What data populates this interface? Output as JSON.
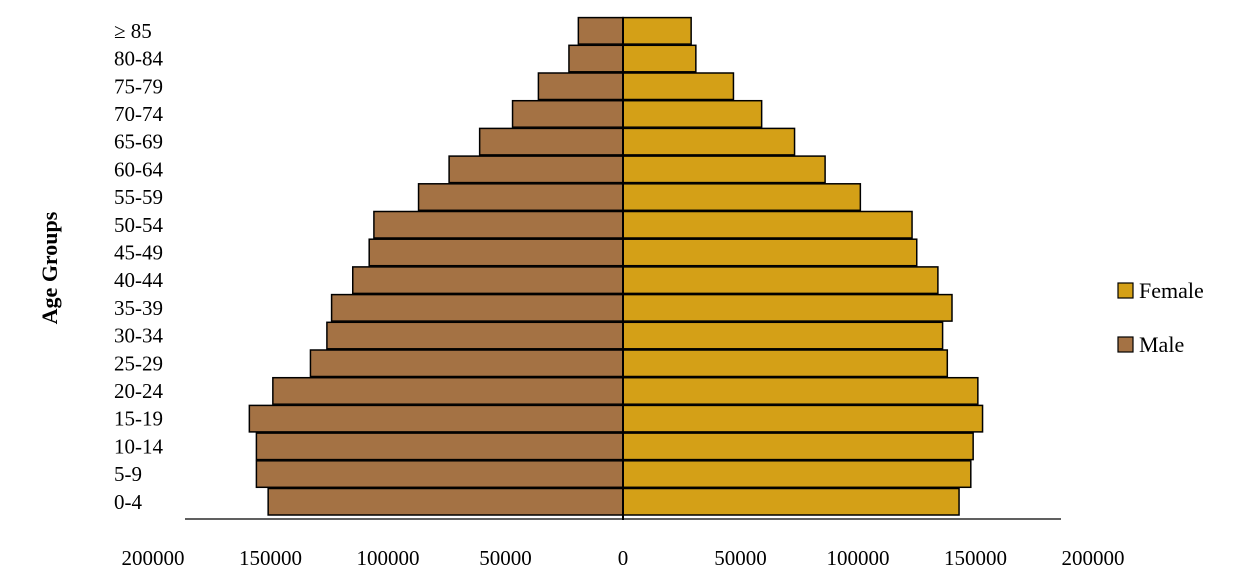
{
  "chart_data": {
    "type": "bar",
    "orientation": "horizontal",
    "subtype": "population-pyramid",
    "ylabel": "Age Groups",
    "xlabel": "",
    "xlim": [
      -200000,
      200000
    ],
    "x_ticks": [
      -200000,
      -150000,
      -100000,
      -50000,
      0,
      50000,
      100000,
      150000,
      200000
    ],
    "x_tick_labels": [
      "200000",
      "150000",
      "100000",
      "50000",
      "0",
      "50000",
      "100000",
      "150000",
      "200000"
    ],
    "categories": [
      "0-4",
      "5-9",
      "10-14",
      "15-19",
      "20-24",
      "25-29",
      "30-34",
      "35-39",
      "40-44",
      "45-49",
      "50-54",
      "55-59",
      "60-64",
      "65-69",
      "70-74",
      "75-79",
      "80-84",
      "≥ 85"
    ],
    "series": [
      {
        "name": "Male",
        "side": "left",
        "color": "#A47244",
        "values": [
          151000,
          156000,
          156000,
          159000,
          149000,
          133000,
          126000,
          124000,
          115000,
          108000,
          106000,
          87000,
          74000,
          61000,
          47000,
          36000,
          23000,
          19000
        ]
      },
      {
        "name": "Female",
        "side": "right",
        "color": "#D4A017",
        "values": [
          143000,
          148000,
          149000,
          153000,
          151000,
          138000,
          136000,
          140000,
          134000,
          125000,
          123000,
          101000,
          86000,
          73000,
          59000,
          47000,
          31000,
          29000
        ]
      }
    ],
    "legend": {
      "placement": "right",
      "entries": [
        "Female",
        "Male"
      ]
    },
    "grid": false
  }
}
